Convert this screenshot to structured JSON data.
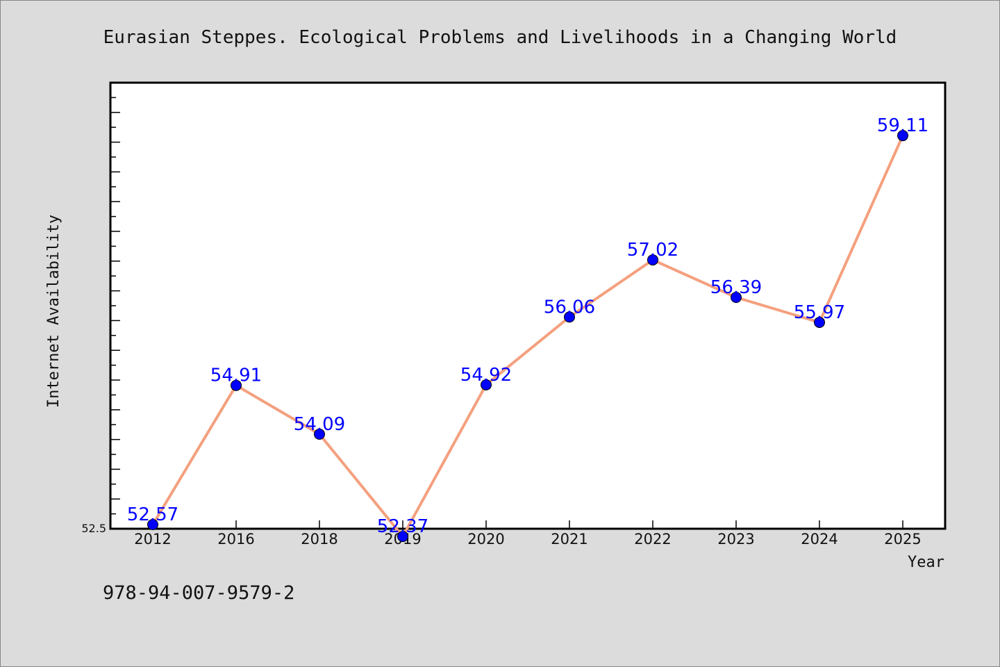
{
  "chart_data": {
    "type": "line",
    "title": "Eurasian Steppes. Ecological Problems and Livelihoods in a Changing World",
    "xlabel": "Year",
    "ylabel": "Internet Availability",
    "categories": [
      "2012",
      "2016",
      "2018",
      "2019",
      "2020",
      "2021",
      "2022",
      "2023",
      "2024",
      "2025"
    ],
    "values": [
      52.57,
      54.91,
      54.09,
      52.37,
      54.92,
      56.06,
      57.02,
      56.39,
      55.97,
      59.11
    ],
    "data_labels": [
      "52.57",
      "54.91",
      "54.09",
      "52.37",
      "54.92",
      "56.06",
      "57.02",
      "56.39",
      "55.97",
      "59.11"
    ],
    "ylim": [
      52.5,
      60.0
    ],
    "yticks_labeled": [
      "52.5"
    ],
    "grid": false,
    "legend": "none",
    "colors": {
      "line": "#f4a07e",
      "marker": "#0000ff",
      "data_label": "#0000ff",
      "background": "#dcdcdc",
      "plot_background": "#ffffff"
    }
  },
  "footer": {
    "isbn": "978-94-007-9579-2"
  }
}
